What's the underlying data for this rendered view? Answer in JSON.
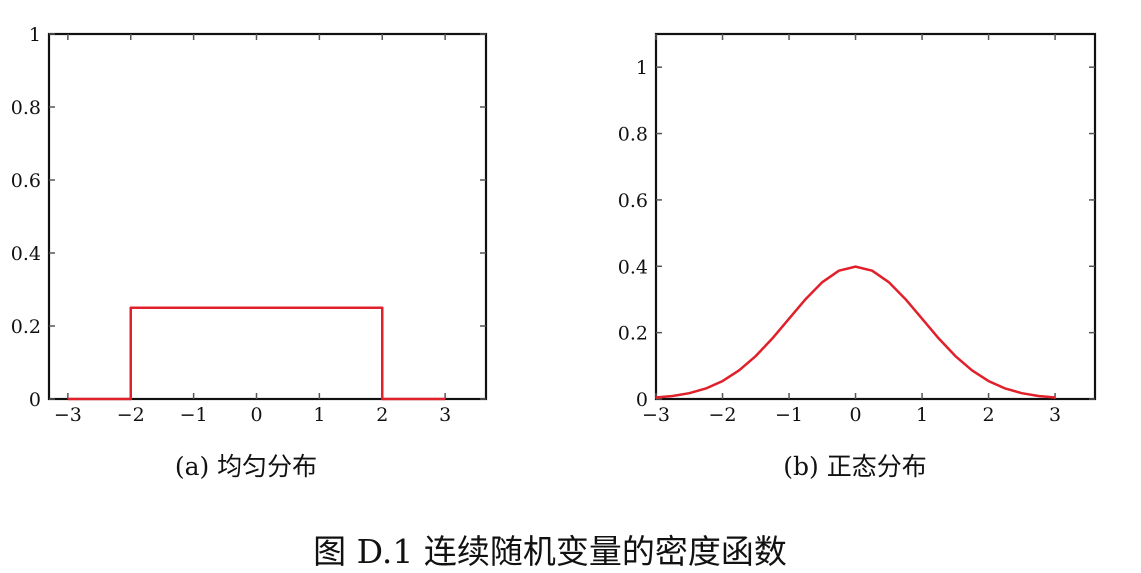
{
  "chart_data": [
    {
      "type": "line",
      "caption": "(a) 均匀分布",
      "xlim": [
        -3.3,
        3.65
      ],
      "ylim": [
        0,
        1
      ],
      "xticks": [
        -3,
        -2,
        -1,
        0,
        1,
        2,
        3
      ],
      "xtick_labels": [
        "−3",
        "−2",
        "−1",
        "0",
        "1",
        "2",
        "3"
      ],
      "yticks": [
        0,
        0.2,
        0.4,
        0.6,
        0.8,
        1
      ],
      "ytick_labels": [
        "0",
        "0.2",
        "0.4",
        "0.6",
        "0.8",
        "1"
      ],
      "grid": false,
      "series": [
        {
          "color": "#e0202a",
          "x": [
            -3,
            -2,
            -2,
            2,
            2,
            3
          ],
          "y": [
            0,
            0,
            0.25,
            0.25,
            0,
            0
          ]
        }
      ]
    },
    {
      "type": "line",
      "caption": "(b) 正态分布",
      "xlim": [
        -3,
        3.6
      ],
      "ylim": [
        0,
        1.1
      ],
      "xticks": [
        -3,
        -2,
        -1,
        0,
        1,
        2,
        3
      ],
      "xtick_labels": [
        "−3",
        "−2",
        "−1",
        "0",
        "1",
        "2",
        "3"
      ],
      "yticks": [
        0,
        0.2,
        0.4,
        0.6,
        0.8,
        1
      ],
      "ytick_labels": [
        "0",
        "0.2",
        "0.4",
        "0.6",
        "0.8",
        "1"
      ],
      "grid": false,
      "series": [
        {
          "color": "#e0202a",
          "x": [
            -3,
            -2.75,
            -2.5,
            -2.25,
            -2,
            -1.75,
            -1.5,
            -1.25,
            -1,
            -0.75,
            -0.5,
            -0.25,
            0,
            0.25,
            0.5,
            0.75,
            1,
            1.25,
            1.5,
            1.75,
            2,
            2.25,
            2.5,
            2.75,
            3
          ],
          "y": [
            0.0044,
            0.0091,
            0.0175,
            0.0317,
            0.054,
            0.0863,
            0.1295,
            0.1826,
            0.242,
            0.3011,
            0.3521,
            0.3867,
            0.3989,
            0.3867,
            0.3521,
            0.3011,
            0.242,
            0.1826,
            0.1295,
            0.0863,
            0.054,
            0.0317,
            0.0175,
            0.0091,
            0.0044
          ]
        }
      ]
    }
  ],
  "figure_caption": "图 D.1 连续随机变量的密度函数"
}
